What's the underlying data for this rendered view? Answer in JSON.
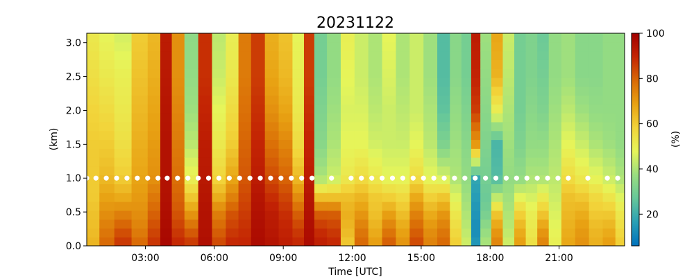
{
  "chart_data": {
    "type": "heatmap",
    "title": "20231122",
    "xlabel": "Time [UTC]",
    "ylabel": "(km)",
    "colorbar_label": "(%)",
    "x_range_hours": [
      0.45,
      23.85
    ],
    "ylim": [
      0,
      3.14
    ],
    "x_ticks": [
      {
        "hours": 3,
        "label": "03:00"
      },
      {
        "hours": 6,
        "label": "06:00"
      },
      {
        "hours": 9,
        "label": "09:00"
      },
      {
        "hours": 12,
        "label": "12:00"
      },
      {
        "hours": 15,
        "label": "15:00"
      },
      {
        "hours": 18,
        "label": "18:00"
      },
      {
        "hours": 21,
        "label": "21:00"
      }
    ],
    "y_ticks": [
      {
        "value": 0.0,
        "label": "0.0"
      },
      {
        "value": 0.5,
        "label": "0.5"
      },
      {
        "value": 1.0,
        "label": "1.0"
      },
      {
        "value": 1.5,
        "label": "1.5"
      },
      {
        "value": 2.0,
        "label": "2.0"
      },
      {
        "value": 2.5,
        "label": "2.5"
      },
      {
        "value": 3.0,
        "label": "3.0"
      }
    ],
    "colorbar": {
      "range": [
        6,
        100
      ],
      "ticks": [
        {
          "value": 20,
          "label": "20"
        },
        {
          "value": 40,
          "label": "40"
        },
        {
          "value": 60,
          "label": "60"
        },
        {
          "value": 80,
          "label": "80"
        },
        {
          "value": 100,
          "label": "100"
        }
      ],
      "colormap": [
        "#0072bd",
        "#2aa0b5",
        "#66c79a",
        "#9ade80",
        "#e6f55a",
        "#f2d43a",
        "#e8a213",
        "#d96a06",
        "#c42504",
        "#a10000"
      ]
    },
    "heights_km": [
      0.0,
      0.25,
      0.5,
      0.75,
      1.0,
      1.5,
      2.0,
      2.5,
      3.14
    ],
    "columns": [
      {
        "t": 0.7,
        "v": [
          65,
          63,
          62,
          60,
          60,
          60,
          58,
          55,
          52
        ]
      },
      {
        "t": 1.3,
        "v": [
          80,
          76,
          72,
          68,
          64,
          60,
          56,
          52,
          48
        ]
      },
      {
        "t": 2.0,
        "v": [
          88,
          82,
          74,
          66,
          60,
          55,
          52,
          50,
          45
        ]
      },
      {
        "t": 2.8,
        "v": [
          80,
          75,
          72,
          70,
          68,
          66,
          64,
          62,
          60
        ]
      },
      {
        "t": 3.4,
        "v": [
          88,
          84,
          80,
          76,
          72,
          70,
          68,
          66,
          64
        ]
      },
      {
        "t": 3.9,
        "v": [
          98,
          97,
          96,
          95,
          95,
          95,
          94,
          93,
          92
        ]
      },
      {
        "t": 4.4,
        "v": [
          90,
          86,
          82,
          80,
          78,
          76,
          74,
          72,
          72
        ]
      },
      {
        "t": 5.0,
        "v": [
          88,
          80,
          70,
          60,
          50,
          42,
          38,
          36,
          35
        ]
      },
      {
        "t": 5.6,
        "v": [
          96,
          95,
          95,
          94,
          93,
          92,
          90,
          88,
          88
        ]
      },
      {
        "t": 6.2,
        "v": [
          85,
          80,
          75,
          65,
          58,
          52,
          48,
          44,
          42
        ]
      },
      {
        "t": 6.8,
        "v": [
          90,
          86,
          82,
          74,
          68,
          60,
          56,
          52,
          50
        ]
      },
      {
        "t": 7.3,
        "v": [
          90,
          88,
          86,
          84,
          82,
          80,
          78,
          76,
          76
        ]
      },
      {
        "t": 7.9,
        "v": [
          97,
          96,
          95,
          94,
          92,
          90,
          88,
          86,
          86
        ]
      },
      {
        "t": 8.5,
        "v": [
          95,
          93,
          92,
          88,
          84,
          78,
          72,
          68,
          66
        ]
      },
      {
        "t": 9.1,
        "v": [
          92,
          90,
          88,
          84,
          80,
          74,
          68,
          64,
          62
        ]
      },
      {
        "t": 9.7,
        "v": [
          90,
          86,
          80,
          72,
          64,
          56,
          52,
          50,
          48
        ]
      },
      {
        "t": 10.1,
        "v": [
          97,
          96,
          95,
          94,
          92,
          90,
          88,
          86,
          86
        ]
      },
      {
        "t": 10.6,
        "v": [
          92,
          88,
          80,
          60,
          40,
          34,
          32,
          30,
          30
        ]
      },
      {
        "t": 11.2,
        "v": [
          90,
          86,
          80,
          60,
          44,
          40,
          38,
          36,
          36
        ]
      },
      {
        "t": 11.8,
        "v": [
          60,
          64,
          66,
          62,
          52,
          48,
          46,
          48,
          50
        ]
      },
      {
        "t": 12.4,
        "v": [
          80,
          76,
          70,
          64,
          56,
          48,
          46,
          44,
          44
        ]
      },
      {
        "t": 13.0,
        "v": [
          70,
          66,
          62,
          60,
          52,
          45,
          42,
          40,
          40
        ]
      },
      {
        "t": 13.6,
        "v": [
          82,
          76,
          68,
          58,
          48,
          44,
          44,
          46,
          48
        ]
      },
      {
        "t": 14.2,
        "v": [
          72,
          68,
          62,
          56,
          48,
          44,
          42,
          40,
          40
        ]
      },
      {
        "t": 14.8,
        "v": [
          85,
          80,
          74,
          66,
          56,
          48,
          44,
          44,
          44
        ]
      },
      {
        "t": 15.4,
        "v": [
          75,
          72,
          66,
          58,
          48,
          42,
          40,
          38,
          38
        ]
      },
      {
        "t": 16.0,
        "v": [
          80,
          76,
          70,
          60,
          46,
          32,
          26,
          24,
          24
        ]
      },
      {
        "t": 16.5,
        "v": [
          60,
          56,
          52,
          46,
          40,
          38,
          36,
          34,
          34
        ]
      },
      {
        "t": 17.0,
        "v": [
          45,
          42,
          40,
          38,
          36,
          34,
          32,
          30,
          30
        ]
      },
      {
        "t": 17.35,
        "v": [
          15,
          12,
          14,
          16,
          18,
          70,
          86,
          90,
          92
        ]
      },
      {
        "t": 17.8,
        "v": [
          40,
          36,
          30,
          28,
          30,
          32,
          34,
          36,
          38
        ]
      },
      {
        "t": 18.3,
        "v": [
          75,
          70,
          60,
          40,
          24,
          22,
          50,
          65,
          68
        ]
      },
      {
        "t": 18.8,
        "v": [
          45,
          42,
          40,
          38,
          36,
          38,
          40,
          42,
          44
        ]
      },
      {
        "t": 19.3,
        "v": [
          70,
          66,
          58,
          46,
          36,
          32,
          30,
          30,
          30
        ]
      },
      {
        "t": 19.8,
        "v": [
          55,
          52,
          50,
          45,
          40,
          36,
          34,
          32,
          32
        ]
      },
      {
        "t": 20.3,
        "v": [
          75,
          70,
          60,
          50,
          40,
          36,
          32,
          30,
          28
        ]
      },
      {
        "t": 20.8,
        "v": [
          50,
          48,
          46,
          44,
          42,
          40,
          38,
          36,
          36
        ]
      },
      {
        "t": 21.4,
        "v": [
          68,
          66,
          64,
          62,
          56,
          48,
          42,
          38,
          38
        ]
      },
      {
        "t": 22.0,
        "v": [
          72,
          70,
          66,
          60,
          52,
          44,
          38,
          34,
          34
        ]
      },
      {
        "t": 22.6,
        "v": [
          66,
          64,
          60,
          56,
          48,
          40,
          36,
          34,
          34
        ]
      },
      {
        "t": 23.2,
        "v": [
          70,
          66,
          60,
          52,
          44,
          38,
          36,
          36,
          36
        ]
      },
      {
        "t": 23.7,
        "v": [
          60,
          56,
          52,
          46,
          40,
          36,
          36,
          36,
          36
        ]
      }
    ],
    "cloud_base_markers": {
      "color": "#ffffff",
      "height_km": 1.0,
      "times_hours": [
        0.45,
        0.85,
        1.3,
        1.75,
        2.2,
        2.65,
        3.1,
        3.55,
        3.95,
        4.4,
        4.85,
        5.3,
        5.75,
        6.2,
        6.65,
        7.1,
        7.55,
        8.0,
        8.45,
        8.9,
        9.35,
        9.8,
        10.25,
        11.1,
        11.95,
        12.4,
        12.85,
        13.3,
        13.75,
        14.2,
        14.65,
        15.1,
        15.55,
        16.0,
        16.45,
        16.9,
        17.35,
        17.8,
        18.25,
        18.7,
        19.15,
        19.6,
        20.05,
        20.5,
        20.95,
        21.4,
        22.25,
        23.1,
        23.55
      ]
    }
  }
}
